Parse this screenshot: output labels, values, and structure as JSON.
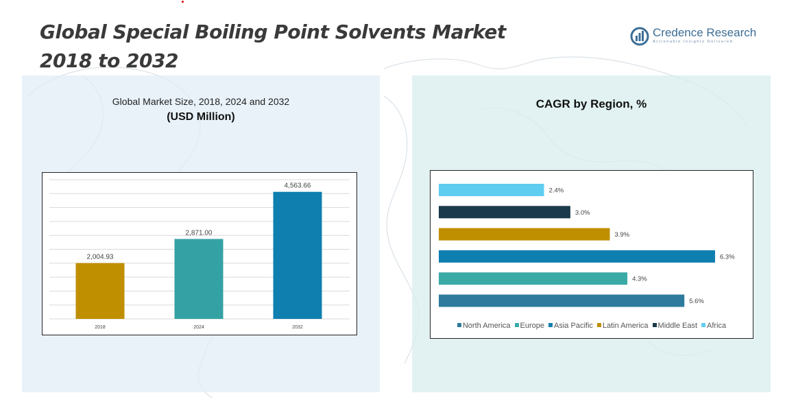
{
  "title": {
    "line1": "Global Special Boiling Point Solvents Market",
    "line2": "2018 to 2032"
  },
  "logo": {
    "name": "Credence Research",
    "tagline": "Actionable Insights Delivered",
    "icon": "bar-chart-circle-icon",
    "color": "#3c6e96"
  },
  "left_panel": {
    "subtitle": "Global Market Size, 2018, 2024 and 2032",
    "unit": "(USD Million)"
  },
  "right_panel": {
    "title": "CAGR by Region, %"
  },
  "chart_data": [
    {
      "type": "bar",
      "title": "Global Market Size, 2018, 2024 and 2032",
      "ylabel": "(USD Million)",
      "categories": [
        "2018",
        "2024",
        "2032"
      ],
      "values": [
        2004.93,
        2871.0,
        4563.66
      ],
      "value_labels": [
        "2,004.93",
        "2,871.00",
        "4,563.66"
      ],
      "colors": [
        "#bf8f00",
        "#34a2a4",
        "#0f7fb0"
      ],
      "ylim": [
        0,
        5000
      ],
      "grid": true
    },
    {
      "type": "bar",
      "orientation": "horizontal",
      "title": "CAGR by Region, %",
      "categories": [
        "Africa",
        "Middle East",
        "Latin America",
        "Asia Pacific",
        "Europe",
        "North America"
      ],
      "values": [
        2.4,
        3.0,
        3.9,
        6.3,
        4.3,
        5.6
      ],
      "value_labels": [
        "2.4%",
        "3.0%",
        "3.9%",
        "6.3%",
        "4.3%",
        "5.6%"
      ],
      "colors": [
        "#5fcdf0",
        "#1b3a4b",
        "#bf8f00",
        "#0f7fb0",
        "#3aaaa6",
        "#2f7b9d"
      ],
      "xlim": [
        0,
        6.3
      ],
      "legend": {
        "position": "bottom",
        "entries": [
          "North America",
          "Europe",
          "Asia Pacific",
          "Latin America",
          "Middle East",
          "Africa"
        ],
        "colors": [
          "#2f7b9d",
          "#3aaaa6",
          "#0f7fb0",
          "#bf8f00",
          "#1b3a4b",
          "#5fcdf0"
        ]
      }
    }
  ]
}
